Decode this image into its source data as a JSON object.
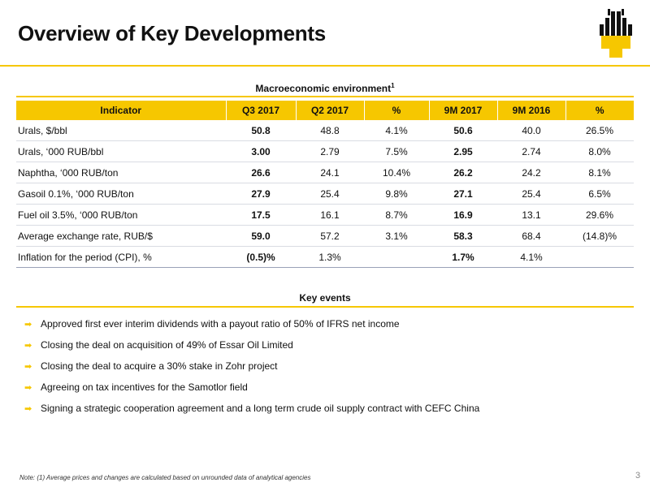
{
  "header": {
    "title": "Overview of Key Developments"
  },
  "logo_icon": "rosneft-logo-icon",
  "accent_color": "#f6c700",
  "macro": {
    "heading": "Macroeconomic environment",
    "heading_sup": "1",
    "columns": [
      "Indicator",
      "Q3 2017",
      "Q2 2017",
      "%",
      "9M 2017",
      "9M 2016",
      "%"
    ],
    "rows": [
      {
        "indicator": "Urals, $/bbl",
        "q3_2017": "50.8",
        "q2_2017": "48.8",
        "pct_q": "4.1%",
        "m9_2017": "50.6",
        "m9_2016": "40.0",
        "pct_9m": "26.5%"
      },
      {
        "indicator": "Urals, ‘000 RUB/bbl",
        "q3_2017": "3.00",
        "q2_2017": "2.79",
        "pct_q": "7.5%",
        "m9_2017": "2.95",
        "m9_2016": "2.74",
        "pct_9m": "8.0%"
      },
      {
        "indicator": "Naphtha, ‘000 RUB/ton",
        "q3_2017": "26.6",
        "q2_2017": "24.1",
        "pct_q": "10.4%",
        "m9_2017": "26.2",
        "m9_2016": "24.2",
        "pct_9m": "8.1%"
      },
      {
        "indicator": "Gasoil 0.1%, ‘000 RUB/ton",
        "q3_2017": "27.9",
        "q2_2017": "25.4",
        "pct_q": "9.8%",
        "m9_2017": "27.1",
        "m9_2016": "25.4",
        "pct_9m": "6.5%"
      },
      {
        "indicator": "Fuel oil 3.5%, ‘000 RUB/ton",
        "q3_2017": "17.5",
        "q2_2017": "16.1",
        "pct_q": "8.7%",
        "m9_2017": "16.9",
        "m9_2016": "13.1",
        "pct_9m": "29.6%"
      },
      {
        "indicator": "Average exchange rate, RUB/$",
        "q3_2017": "59.0",
        "q2_2017": "57.2",
        "pct_q": "3.1%",
        "m9_2017": "58.3",
        "m9_2016": "68.4",
        "pct_9m": "(14.8)%"
      },
      {
        "indicator": "Inflation for the period (CPI), %",
        "q3_2017": "(0.5)%",
        "q2_2017": "1.3%",
        "pct_q": "",
        "m9_2017": "1.7%",
        "m9_2016": "4.1%",
        "pct_9m": ""
      }
    ]
  },
  "events": {
    "heading": "Key events",
    "bullet_icon": "arrow-right-bullet-icon",
    "items": [
      "Approved first ever interim dividends with a payout ratio of 50% of IFRS net income",
      "Closing the deal on acquisition of 49% of Essar Oil Limited",
      "Closing the deal to acquire a 30% stake in Zohr project",
      "Agreeing on tax incentives for  the Samotlor field",
      "Signing a strategic cooperation agreement and a long term crude oil supply contract with CEFC China"
    ]
  },
  "footnote": "Note: (1) Average prices and changes are calculated based on unrounded data of analytical agencies",
  "page_number": "3"
}
